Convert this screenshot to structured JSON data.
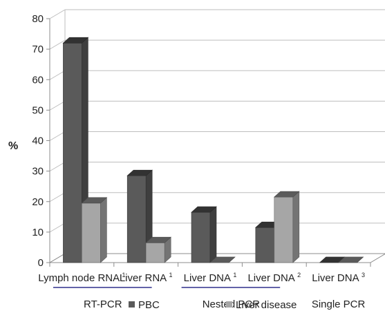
{
  "chart_data": {
    "type": "bar",
    "ylabel": "%",
    "ylim": [
      0,
      80
    ],
    "yticks": [
      "0",
      "10",
      "20",
      "30",
      "40",
      "50",
      "60",
      "70",
      "80"
    ],
    "categories": [
      {
        "label": "Lymph node RNA",
        "sup": "1"
      },
      {
        "label": "Liver RNA",
        "sup": "1"
      },
      {
        "label": "Liver DNA",
        "sup": "1"
      },
      {
        "label": "Liver DNA",
        "sup": "2"
      },
      {
        "label": "Liver DNA",
        "sup": "3"
      }
    ],
    "groups": [
      {
        "label": "RT-PCR",
        "categories": [
          0,
          1
        ]
      },
      {
        "label": "Nested PCR",
        "categories": [
          2,
          3
        ]
      },
      {
        "label": "Single PCR",
        "categories": [
          4
        ]
      }
    ],
    "series": [
      {
        "name": "PBC",
        "color": "#5a5a5a",
        "values": [
          72,
          28.5,
          16.5,
          11.5,
          0
        ]
      },
      {
        "name": "Liver disease",
        "color": "#a6a6a6",
        "values": [
          19.5,
          6.5,
          0,
          21.5,
          0
        ]
      }
    ],
    "grid": true,
    "legend": "bottom",
    "style": "3d-column"
  }
}
